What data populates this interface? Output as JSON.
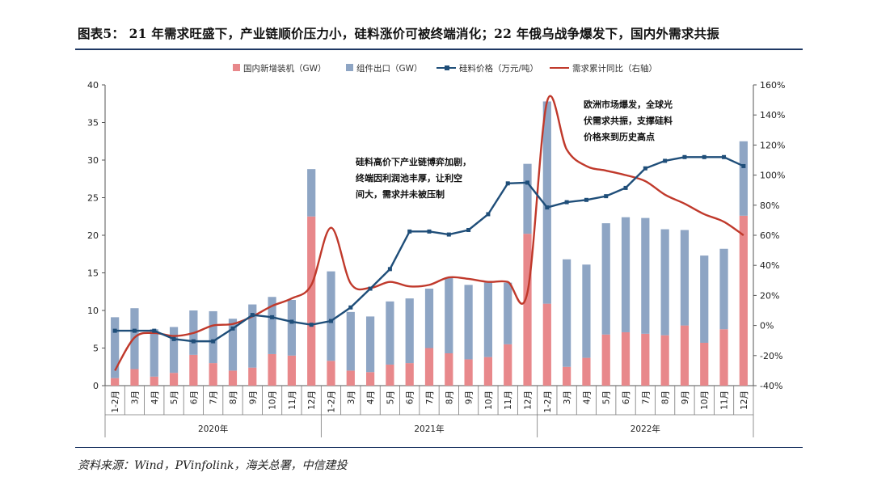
{
  "header": {
    "title": "图表5：  21 年需求旺盛下，产业链顺价压力小，硅料涨价可被终端消化；22 年俄乌战争爆发下，国内外需求共振"
  },
  "footer": {
    "source": "资料来源：Wind，PVinfolink，海关总署，中信建投"
  },
  "colors": {
    "domestic": "#e8888b",
    "export": "#8ea5c4",
    "silicon": "#1f4e79",
    "demand_yoy": "#c0392b",
    "rule": "#1f3864"
  },
  "chart_data": {
    "type": "bar",
    "title": "",
    "categories": [
      "1-2月",
      "3月",
      "4月",
      "5月",
      "6月",
      "7月",
      "8月",
      "9月",
      "10月",
      "11月",
      "12月",
      "1-2月",
      "3月",
      "4月",
      "5月",
      "6月",
      "7月",
      "8月",
      "9月",
      "10月",
      "11月",
      "12月",
      "1-2月",
      "3月",
      "4月",
      "5月",
      "6月",
      "7月",
      "8月",
      "9月",
      "10月",
      "11月",
      "12月"
    ],
    "years": [
      "2020年",
      "2021年",
      "2022年"
    ],
    "left_axis": {
      "min": 0,
      "max": 40,
      "ticks": [
        "0",
        "5",
        "10",
        "15",
        "20",
        "25",
        "30",
        "35",
        "40"
      ]
    },
    "right_axis": {
      "min": -40,
      "max": 160,
      "ticks": [
        "-40%",
        "-20%",
        "0%",
        "20%",
        "40%",
        "60%",
        "80%",
        "100%",
        "120%",
        "140%",
        "160%"
      ]
    },
    "series": [
      {
        "name": "国内新增装机（GW）",
        "kind": "stacked-bar",
        "axis": "left",
        "values": [
          1.0,
          2.2,
          1.2,
          1.7,
          4.1,
          3.0,
          2.0,
          2.4,
          4.2,
          4.0,
          22.5,
          3.3,
          2.0,
          1.8,
          2.8,
          3.0,
          5.0,
          4.3,
          3.5,
          3.8,
          5.5,
          20.2,
          10.9,
          2.5,
          3.7,
          6.8,
          7.1,
          6.9,
          6.7,
          8.0,
          5.7,
          7.5,
          22.6
        ]
      },
      {
        "name": "组件出口（GW）",
        "kind": "stacked-bar",
        "axis": "left",
        "values": [
          8.1,
          8.1,
          6.3,
          6.1,
          5.9,
          6.9,
          6.9,
          8.4,
          7.6,
          7.4,
          6.3,
          11.9,
          7.8,
          7.4,
          8.4,
          8.6,
          7.9,
          10.1,
          9.9,
          9.9,
          8.2,
          9.3,
          26.9,
          14.3,
          12.4,
          14.8,
          15.3,
          15.4,
          14.1,
          12.7,
          11.6,
          10.7,
          9.9
        ]
      },
      {
        "name": "硅料价格（万元/吨）",
        "kind": "line-marker",
        "axis": "left",
        "values": [
          7.3,
          7.3,
          7.3,
          6.2,
          5.9,
          5.9,
          7.6,
          9.4,
          9.1,
          8.5,
          8.1,
          8.6,
          10.4,
          12.9,
          15.5,
          20.5,
          20.5,
          20.1,
          20.7,
          22.8,
          26.9,
          27.0,
          23.7,
          24.4,
          24.7,
          25.2,
          26.3,
          28.9,
          29.9,
          30.4,
          30.4,
          30.4,
          29.2
        ]
      },
      {
        "name": "需求累计同比（右轴）",
        "kind": "smooth-line",
        "axis": "right",
        "values": [
          -30,
          -8,
          -5,
          -7,
          -5,
          0,
          1,
          6,
          13,
          18,
          27,
          65,
          28,
          25,
          29,
          26,
          27,
          32,
          31,
          29,
          29,
          22,
          149,
          117,
          106,
          103,
          100,
          96,
          87,
          81,
          74,
          69,
          60
        ]
      }
    ],
    "annotations": [
      {
        "lines": [
          "硅料高价下产业链博弈加剧，",
          "终端因利润池丰厚，让利空",
          "间大，需求并未被压制"
        ]
      },
      {
        "lines": [
          "欧洲市场爆发，全球光",
          "伏需求共振，支撑硅料",
          "价格来到历史高点"
        ]
      }
    ]
  }
}
